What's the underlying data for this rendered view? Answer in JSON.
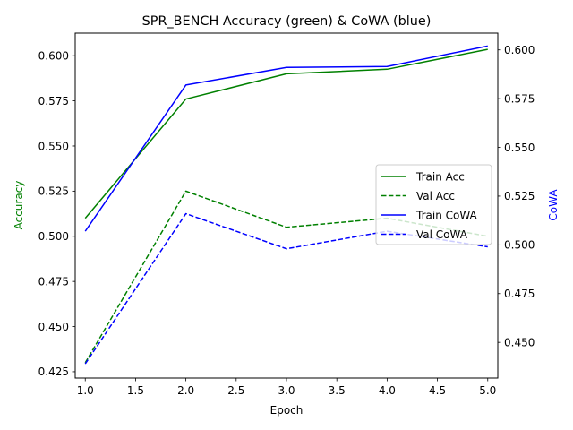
{
  "chart_data": {
    "type": "line",
    "title": "SPR_BENCH Accuracy (green) & CoWA (blue)",
    "xlabel": "Epoch",
    "ylabel_left": "Accuracy",
    "ylabel_right": "CoWA",
    "xlim": [
      0.9,
      5.1
    ],
    "ylim_left": [
      0.4215,
      0.6125
    ],
    "ylim_right": [
      0.4317,
      0.6086
    ],
    "x_ticks": [
      "1.0",
      "1.5",
      "2.0",
      "2.5",
      "3.0",
      "3.5",
      "4.0",
      "4.5",
      "5.0"
    ],
    "y_ticks_left": [
      "0.425",
      "0.450",
      "0.475",
      "0.500",
      "0.525",
      "0.550",
      "0.575",
      "0.600"
    ],
    "y_ticks_right": [
      "0.450",
      "0.475",
      "0.500",
      "0.525",
      "0.550",
      "0.575",
      "0.600"
    ],
    "x": [
      1,
      2,
      3,
      4,
      5
    ],
    "series": [
      {
        "name": "Train Acc",
        "axis": "left",
        "color": "#008000",
        "dash": "solid",
        "values": [
          0.51,
          0.576,
          0.59,
          0.5925,
          0.6035
        ]
      },
      {
        "name": "Val Acc",
        "axis": "left",
        "color": "#008000",
        "dash": "dashed",
        "values": [
          0.43,
          0.525,
          0.505,
          0.51,
          0.5
        ]
      },
      {
        "name": "Train CoWA",
        "axis": "right",
        "color": "#0000ff",
        "dash": "solid",
        "values": [
          0.507,
          0.582,
          0.591,
          0.5915,
          0.602
        ]
      },
      {
        "name": "Val CoWA",
        "axis": "right",
        "color": "#0000ff",
        "dash": "dashed",
        "values": [
          0.439,
          0.516,
          0.498,
          0.507,
          0.499
        ]
      }
    ],
    "legend_position": "center-right",
    "grid": false
  }
}
